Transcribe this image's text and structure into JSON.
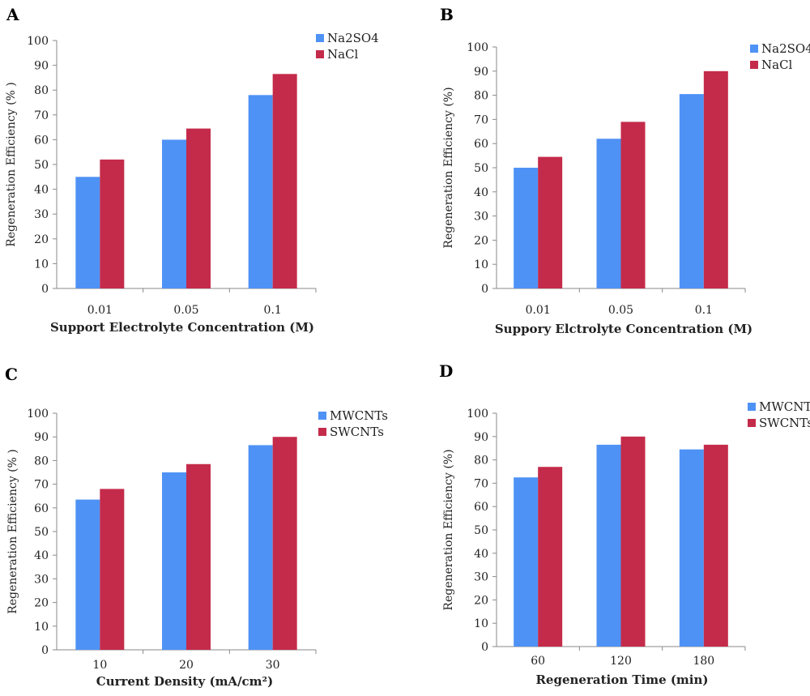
{
  "colors": {
    "series1": "#4f92f6",
    "series2": "#c42b4a",
    "axis": "#8a8a8a"
  },
  "chart_data": [
    {
      "panel": "A",
      "type": "bar",
      "categories": [
        "0.01",
        "0.05",
        "0.1"
      ],
      "series": [
        {
          "name": "Na2SO4",
          "values": [
            45,
            60,
            78
          ]
        },
        {
          "name": "NaCl",
          "values": [
            52,
            64.5,
            86.5
          ]
        }
      ],
      "ylim": [
        0,
        100
      ],
      "yticks": [
        "0",
        "10",
        "20",
        "30",
        "40",
        "50",
        "60",
        "70",
        "80",
        "90",
        "100"
      ],
      "xlabel": "Support Electrolyte Concentration (M)",
      "ylabel": "Regeneration Efficiency (% )",
      "legend_position": "top-right",
      "grid": false
    },
    {
      "panel": "B",
      "type": "bar",
      "categories": [
        "0.01",
        "0.05",
        "0.1"
      ],
      "series": [
        {
          "name": "Na2SO4",
          "values": [
            50,
            62,
            80.5
          ]
        },
        {
          "name": "NaCl",
          "values": [
            54.5,
            69,
            90
          ]
        }
      ],
      "ylim": [
        0,
        100
      ],
      "yticks": [
        "0",
        "10",
        "20",
        "30",
        "40",
        "50",
        "60",
        "70",
        "80",
        "90",
        "100"
      ],
      "xlabel": "Suppory Elctrolyte Concentration (M)",
      "ylabel": "Regeneration Efficiency (%)",
      "legend_position": "top-right",
      "grid": false
    },
    {
      "panel": "C",
      "type": "bar",
      "categories": [
        "10",
        "20",
        "30"
      ],
      "series": [
        {
          "name": "MWCNTs",
          "values": [
            63.5,
            75,
            86.5
          ]
        },
        {
          "name": "SWCNTs",
          "values": [
            68,
            78.5,
            90
          ]
        }
      ],
      "ylim": [
        0,
        100
      ],
      "yticks": [
        "0",
        "10",
        "20",
        "30",
        "40",
        "50",
        "60",
        "70",
        "80",
        "90",
        "100"
      ],
      "xlabel": "Current Density (mA/cm²)",
      "ylabel": "Regeneration Efficiency (% )",
      "legend_position": "top-right",
      "grid": false
    },
    {
      "panel": "D",
      "type": "bar",
      "categories": [
        "60",
        "120",
        "180"
      ],
      "series": [
        {
          "name": "MWCNTs",
          "values": [
            72.5,
            86.5,
            84.5
          ]
        },
        {
          "name": "SWCNTs",
          "values": [
            77,
            90,
            86.5
          ]
        }
      ],
      "ylim": [
        0,
        100
      ],
      "yticks": [
        "0",
        "10",
        "20",
        "30",
        "40",
        "50",
        "60",
        "70",
        "80",
        "90",
        "100"
      ],
      "xlabel": "Regeneration Time (min)",
      "ylabel": "Regeneration Efficiency (%)",
      "legend_position": "top-right",
      "grid": false
    }
  ]
}
